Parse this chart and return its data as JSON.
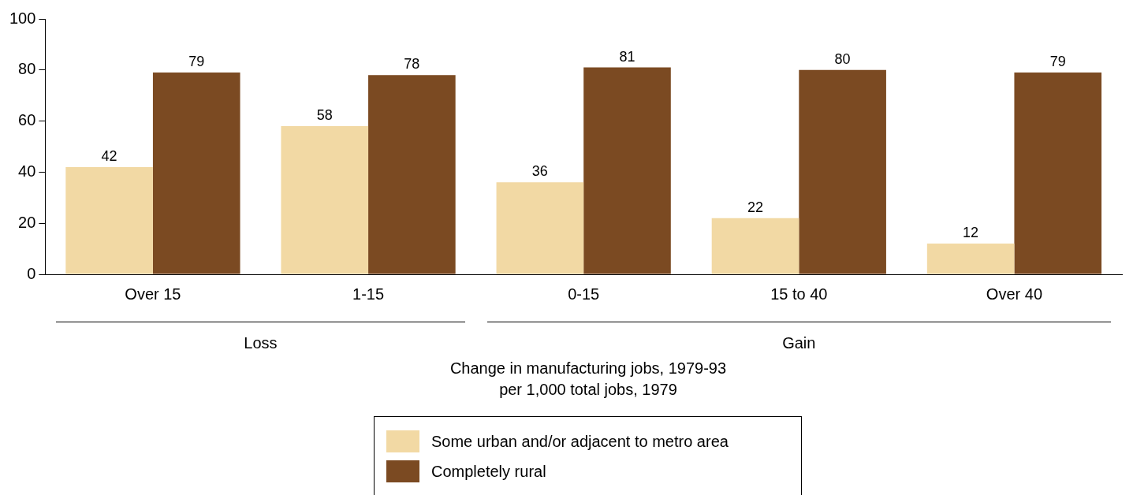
{
  "chart_data": {
    "type": "bar",
    "categories": [
      "Over 15",
      "1-15",
      "0-15",
      "15 to 40",
      "Over 40"
    ],
    "series": [
      {
        "name": "Some urban and/or adjacent to metro area",
        "color": "#f2d9a4",
        "values": [
          42,
          58,
          36,
          22,
          12
        ]
      },
      {
        "name": "Completely rural",
        "color": "#7b4a22",
        "values": [
          79,
          78,
          81,
          80,
          79
        ]
      }
    ],
    "xlabel": "Change in manufacturing jobs, 1979-93\nper 1,000 total jobs, 1979",
    "annotations": [
      "Loss",
      "Gain"
    ],
    "ylim": [
      0,
      100
    ],
    "yticks": [
      0,
      20,
      40,
      60,
      80,
      100
    ],
    "grid": false,
    "data_labels": true,
    "legend": "bottom"
  }
}
